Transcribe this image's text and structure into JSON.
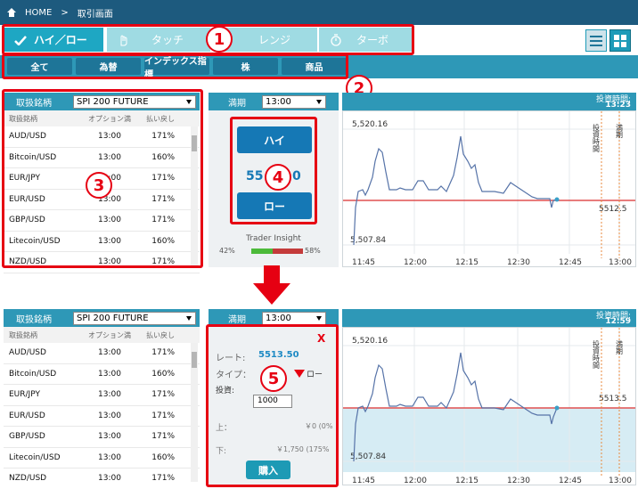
{
  "breadcrumb": {
    "home": "HOME",
    "separator": ">",
    "current": "取引画面"
  },
  "mode_tabs": [
    {
      "label": "ハイ／ロー",
      "icon": "check-arrow-icon",
      "active": true
    },
    {
      "label": "タッチ",
      "icon": "hand-touch-icon",
      "active": false
    },
    {
      "label": "レンジ",
      "icon": "range-icon",
      "active": false
    },
    {
      "label": "ターボ",
      "icon": "stopwatch-icon",
      "active": false
    }
  ],
  "categories": [
    "全て",
    "為替",
    "インデックス指標",
    "株",
    "商品"
  ],
  "badges": [
    "1",
    "2",
    "3",
    "4",
    "5"
  ],
  "symbols_panel": {
    "header_label": "取扱銘柄",
    "selected": "SPI 200 FUTURE",
    "columns": [
      "取扱銘柄",
      "オプション満",
      "払い戻し"
    ],
    "rows": [
      {
        "name": "AUD/USD",
        "expiry": "13:00",
        "payout": "171%"
      },
      {
        "name": "Bitcoin/USD",
        "expiry": "13:00",
        "payout": "160%"
      },
      {
        "name": "EUR/JPY",
        "expiry": "13:00",
        "payout": "171%"
      },
      {
        "name": "EUR/USD",
        "expiry": "13:00",
        "payout": "171%"
      },
      {
        "name": "GBP/USD",
        "expiry": "13:00",
        "payout": "171%"
      },
      {
        "name": "Litecoin/USD",
        "expiry": "13:00",
        "payout": "160%"
      },
      {
        "name": "NZD/USD",
        "expiry": "13:00",
        "payout": "171%"
      }
    ]
  },
  "trade_panel": {
    "expiry_label": "満期",
    "expiry_value": "13:00",
    "high_label": "ハイ",
    "low_label": "ロー",
    "price_partial_left": "55",
    "price_partial_right": "0",
    "insight_label": "Trader Insight",
    "insight_left": "42%",
    "insight_right": "58%",
    "insight_high_pct": 42
  },
  "order_panel": {
    "close": "X",
    "rate_label": "レート:",
    "rate_value": "5513.50",
    "type_label": "タイプ：",
    "type_value": "ロー",
    "invest_label": "投資:",
    "invest_value": "1000",
    "upper_label": "上：",
    "upper_value": "￥0 (0%",
    "lower_label": "下:",
    "lower_value": "￥1,750 (175%",
    "buy_label": "購入"
  },
  "chart_top": {
    "head_label": "投資時間:",
    "head_time": "13:23",
    "y_top": "5,520.16",
    "y_bottom": "5,507.84",
    "current": "5512.5",
    "vlabel1": "投資時間",
    "vlabel2": "満期",
    "x_ticks": [
      "11:45",
      "12:00",
      "12:15",
      "12:30",
      "12:45",
      "13:00"
    ]
  },
  "chart_bottom": {
    "head_label": "投資時間:",
    "head_time": "12:59",
    "y_top": "5,520.16",
    "y_bottom": "5,507.84",
    "current": "5513.5",
    "vlabel1": "投資時間",
    "vlabel2": "満期",
    "x_ticks": [
      "11:45",
      "12:00",
      "12:15",
      "12:30",
      "12:45",
      "13:00"
    ]
  },
  "colors": {
    "accent": "#2e98b7",
    "tab_active": "#1ea7c3",
    "highlight": "#e60012",
    "button": "#1578b5"
  }
}
